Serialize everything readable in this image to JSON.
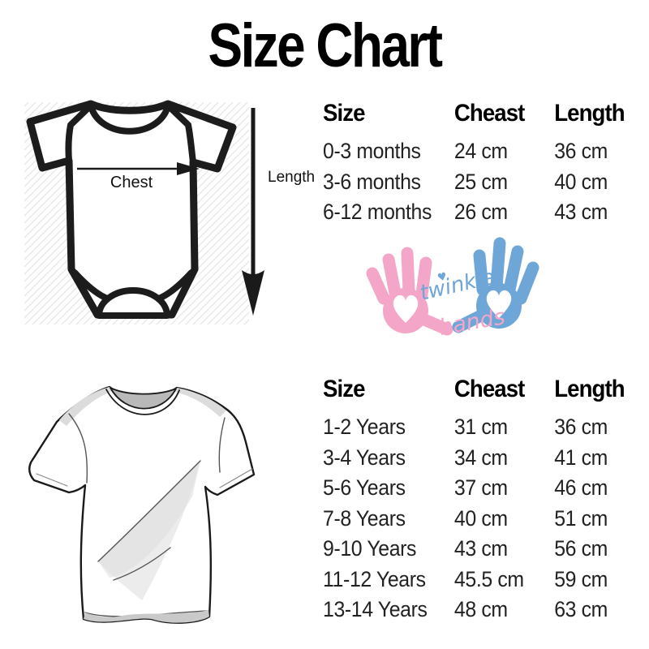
{
  "title": "Size Chart",
  "colors": {
    "pink": "#f3a6c7",
    "blue": "#6fa6d8",
    "ink": "#1a1a1a",
    "hatch": "#e9e9e9"
  },
  "measurement_diagram": {
    "chest_arrow_label": "Chest",
    "length_arrow_label": "Length"
  },
  "logo": {
    "word1": "twinkle",
    "word2": "hands",
    "heart_icon": "♥"
  },
  "baby_table": {
    "headers": [
      "Size",
      "Cheast",
      "Length"
    ],
    "rows": [
      [
        "0-3 months",
        "24 cm",
        "36 cm"
      ],
      [
        "3-6 months",
        "25 cm",
        "40 cm"
      ],
      [
        "6-12 months",
        "26 cm",
        "43 cm"
      ]
    ]
  },
  "kids_table": {
    "headers": [
      "Size",
      "Cheast",
      "Length"
    ],
    "rows": [
      [
        "1-2 Years",
        "31 cm",
        "36 cm"
      ],
      [
        "3-4 Years",
        "34 cm",
        "41 cm"
      ],
      [
        "5-6 Years",
        "37 cm",
        "46 cm"
      ],
      [
        "7-8 Years",
        "40 cm",
        "51 cm"
      ],
      [
        "9-10 Years",
        "43 cm",
        "56 cm"
      ],
      [
        "11-12 Years",
        "45.5 cm",
        "59 cm"
      ],
      [
        "13-14 Years",
        "48 cm",
        "63 cm"
      ]
    ]
  },
  "chart_data": [
    {
      "type": "table",
      "columns": [
        "Size",
        "Cheast",
        "Length"
      ],
      "rows": [
        [
          "0-3 months",
          "24 cm",
          "36 cm"
        ],
        [
          "3-6 months",
          "25 cm",
          "40 cm"
        ],
        [
          "6-12 months",
          "26 cm",
          "43 cm"
        ]
      ]
    },
    {
      "type": "table",
      "columns": [
        "Size",
        "Cheast",
        "Length"
      ],
      "rows": [
        [
          "1-2 Years",
          "31 cm",
          "36 cm"
        ],
        [
          "3-4 Years",
          "34 cm",
          "41 cm"
        ],
        [
          "5-6 Years",
          "37 cm",
          "46 cm"
        ],
        [
          "7-8 Years",
          "40 cm",
          "51 cm"
        ],
        [
          "9-10 Years",
          "43 cm",
          "56 cm"
        ],
        [
          "11-12 Years",
          "45.5 cm",
          "59 cm"
        ],
        [
          "13-14 Years",
          "48 cm",
          "63 cm"
        ]
      ]
    }
  ]
}
